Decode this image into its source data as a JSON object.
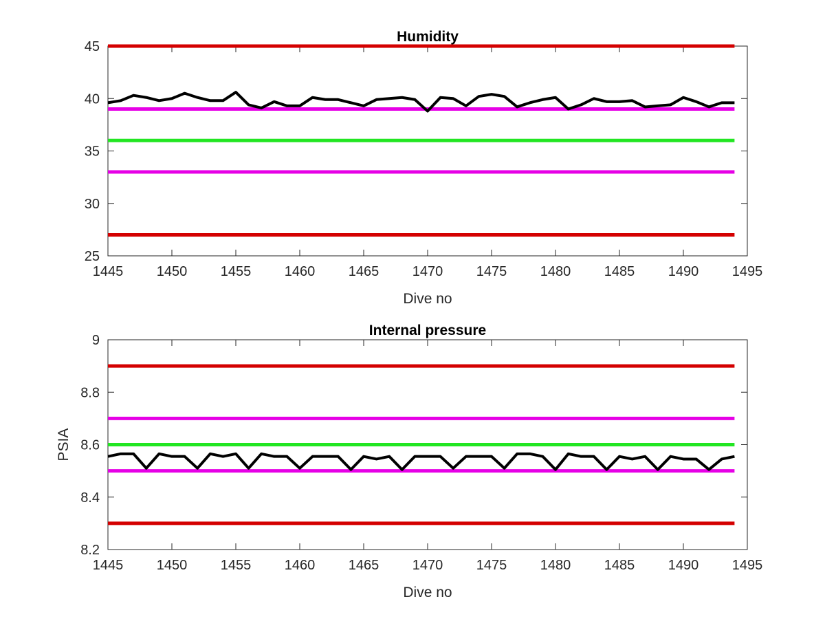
{
  "chart_data": [
    {
      "type": "line",
      "title": "Humidity",
      "xlabel": "Dive no",
      "ylabel": "",
      "xlim": [
        1445,
        1495
      ],
      "ylim": [
        25,
        45
      ],
      "xticks": [
        "1445",
        "1450",
        "1455",
        "1460",
        "1465",
        "1470",
        "1475",
        "1480",
        "1485",
        "1490",
        "1495"
      ],
      "yticks": [
        "25",
        "30",
        "35",
        "40",
        "45"
      ],
      "grid": false,
      "reference_lines": [
        {
          "y": 45,
          "color": "#d40000"
        },
        {
          "y": 39,
          "color": "#e600e6"
        },
        {
          "y": 36,
          "color": "#22e622"
        },
        {
          "y": 33,
          "color": "#e600e6"
        },
        {
          "y": 27,
          "color": "#d40000"
        }
      ],
      "series": [
        {
          "color": "#000000",
          "x": [
            1445,
            1446,
            1447,
            1448,
            1449,
            1450,
            1451,
            1452,
            1453,
            1454,
            1455,
            1456,
            1457,
            1458,
            1459,
            1460,
            1461,
            1462,
            1463,
            1464,
            1465,
            1466,
            1467,
            1468,
            1469,
            1470,
            1471,
            1472,
            1473,
            1474,
            1475,
            1476,
            1477,
            1478,
            1479,
            1480,
            1481,
            1482,
            1483,
            1484,
            1485,
            1486,
            1487,
            1488,
            1489,
            1490,
            1491,
            1492,
            1493,
            1494
          ],
          "values": [
            39.6,
            39.8,
            40.3,
            40.1,
            39.8,
            40.0,
            40.5,
            40.1,
            39.8,
            39.8,
            40.6,
            39.4,
            39.1,
            39.7,
            39.3,
            39.3,
            40.1,
            39.9,
            39.9,
            39.6,
            39.3,
            39.9,
            40.0,
            40.1,
            39.9,
            38.8,
            40.1,
            40.0,
            39.3,
            40.2,
            40.4,
            40.2,
            39.2,
            39.6,
            39.9,
            40.1,
            39.0,
            39.4,
            40.0,
            39.7,
            39.7,
            39.8,
            39.2,
            39.3,
            39.4,
            40.1,
            39.7,
            39.2,
            39.6,
            39.6
          ]
        }
      ]
    },
    {
      "type": "line",
      "title": "Internal pressure",
      "xlabel": "Dive no",
      "ylabel": "PSIA",
      "xlim": [
        1445,
        1495
      ],
      "ylim": [
        8.2,
        9
      ],
      "xticks": [
        "1445",
        "1450",
        "1455",
        "1460",
        "1465",
        "1470",
        "1475",
        "1480",
        "1485",
        "1490",
        "1495"
      ],
      "yticks": [
        "8.2",
        "8.4",
        "8.6",
        "8.8",
        "9"
      ],
      "grid": false,
      "reference_lines": [
        {
          "y": 8.9,
          "color": "#d40000"
        },
        {
          "y": 8.7,
          "color": "#e600e6"
        },
        {
          "y": 8.6,
          "color": "#22e622"
        },
        {
          "y": 8.5,
          "color": "#e600e6"
        },
        {
          "y": 8.3,
          "color": "#d40000"
        }
      ],
      "series": [
        {
          "color": "#000000",
          "x": [
            1445,
            1446,
            1447,
            1448,
            1449,
            1450,
            1451,
            1452,
            1453,
            1454,
            1455,
            1456,
            1457,
            1458,
            1459,
            1460,
            1461,
            1462,
            1463,
            1464,
            1465,
            1466,
            1467,
            1468,
            1469,
            1470,
            1471,
            1472,
            1473,
            1474,
            1475,
            1476,
            1477,
            1478,
            1479,
            1480,
            1481,
            1482,
            1483,
            1484,
            1485,
            1486,
            1487,
            1488,
            1489,
            1490,
            1491,
            1492,
            1493,
            1494
          ],
          "values": [
            8.555,
            8.565,
            8.565,
            8.51,
            8.565,
            8.555,
            8.555,
            8.51,
            8.565,
            8.555,
            8.565,
            8.51,
            8.565,
            8.555,
            8.555,
            8.51,
            8.555,
            8.555,
            8.555,
            8.505,
            8.555,
            8.545,
            8.555,
            8.505,
            8.555,
            8.555,
            8.555,
            8.51,
            8.555,
            8.555,
            8.555,
            8.51,
            8.565,
            8.565,
            8.555,
            8.505,
            8.565,
            8.555,
            8.555,
            8.505,
            8.555,
            8.545,
            8.555,
            8.505,
            8.555,
            8.545,
            8.545,
            8.505,
            8.545,
            8.555
          ]
        }
      ]
    }
  ]
}
